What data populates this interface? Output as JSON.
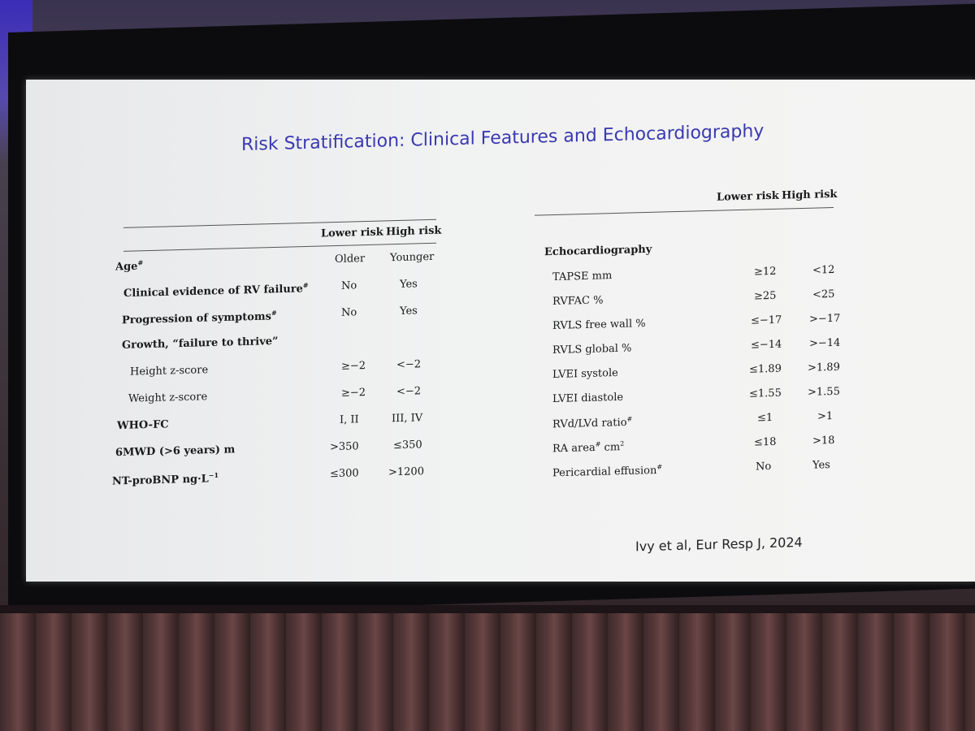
{
  "slide": {
    "title": "Risk Stratification: Clinical Features and Echocardiography",
    "citation": "Ivy et al, Eur Resp J, 2024"
  },
  "left_table": {
    "col_lower": "Lower risk",
    "col_high": "High risk",
    "rows": [
      {
        "label": "Age#",
        "lower": "Older",
        "high": "Younger"
      },
      {
        "label": "Clinical evidence of RV failure#",
        "lower": "No",
        "high": "Yes"
      },
      {
        "label": "Progression of symptoms#",
        "lower": "No",
        "high": "Yes"
      },
      {
        "label": "Growth, “failure to thrive”",
        "lower": "",
        "high": ""
      },
      {
        "label": "Height z-score",
        "lower": "≥−2",
        "high": "<−2"
      },
      {
        "label": "Weight z-score",
        "lower": "≥−2",
        "high": "<−2"
      },
      {
        "label": "WHO-FC",
        "lower": "I, II",
        "high": "III, IV"
      },
      {
        "label": "6MWD (>6 years) m",
        "lower": ">350",
        "high": "≤350"
      },
      {
        "label": "NT-proBNP ng·L−1",
        "lower": "≤300",
        "high": ">1200"
      }
    ]
  },
  "right_table": {
    "col_lower": "Lower risk",
    "col_high": "High risk",
    "section": "Echocardiography",
    "rows": [
      {
        "label": "TAPSE mm",
        "lower": "≥12",
        "high": "<12"
      },
      {
        "label": "RVFAC %",
        "lower": "≥25",
        "high": "<25"
      },
      {
        "label": "RVLS free wall %",
        "lower": "≤−17",
        "high": ">−17"
      },
      {
        "label": "RVLS global %",
        "lower": "≤−14",
        "high": ">−14"
      },
      {
        "label": "LVEI systole",
        "lower": "≤1.89",
        "high": ">1.89"
      },
      {
        "label": "LVEI diastole",
        "lower": "≤1.55",
        "high": ">1.55"
      },
      {
        "label": "RVd/LVd ratio#",
        "lower": "≤1",
        "high": ">1"
      },
      {
        "label": "RA area# cm2",
        "lower": "≤18",
        "high": ">18"
      },
      {
        "label": "Pericardial effusion#",
        "lower": "No",
        "high": "Yes"
      }
    ]
  }
}
